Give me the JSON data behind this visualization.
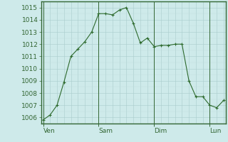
{
  "x_labels": [
    "Ven",
    "Sam",
    "Dim",
    "Lun"
  ],
  "y_values": [
    1005.8,
    1006.2,
    1007.0,
    1008.9,
    1011.0,
    1011.6,
    1012.2,
    1013.0,
    1014.5,
    1014.5,
    1014.4,
    1014.8,
    1015.0,
    1013.7,
    1012.1,
    1012.5,
    1011.8,
    1011.9,
    1011.9,
    1012.0,
    1012.0,
    1009.0,
    1007.7,
    1007.7,
    1007.0,
    1006.8,
    1007.4
  ],
  "n_points": 27,
  "day_boundaries": [
    0,
    8,
    16,
    24
  ],
  "ylim": [
    1005.5,
    1015.5
  ],
  "yticks": [
    1006,
    1007,
    1008,
    1009,
    1010,
    1011,
    1012,
    1013,
    1014,
    1015
  ],
  "line_color": "#2d6a2d",
  "bg_color": "#ceeaea",
  "grid_color_major": "#aacccc",
  "grid_color_minor": "#c0dddd",
  "border_color": "#336633",
  "tick_label_fontsize": 6.5,
  "axis_label_fontsize": 6.5
}
